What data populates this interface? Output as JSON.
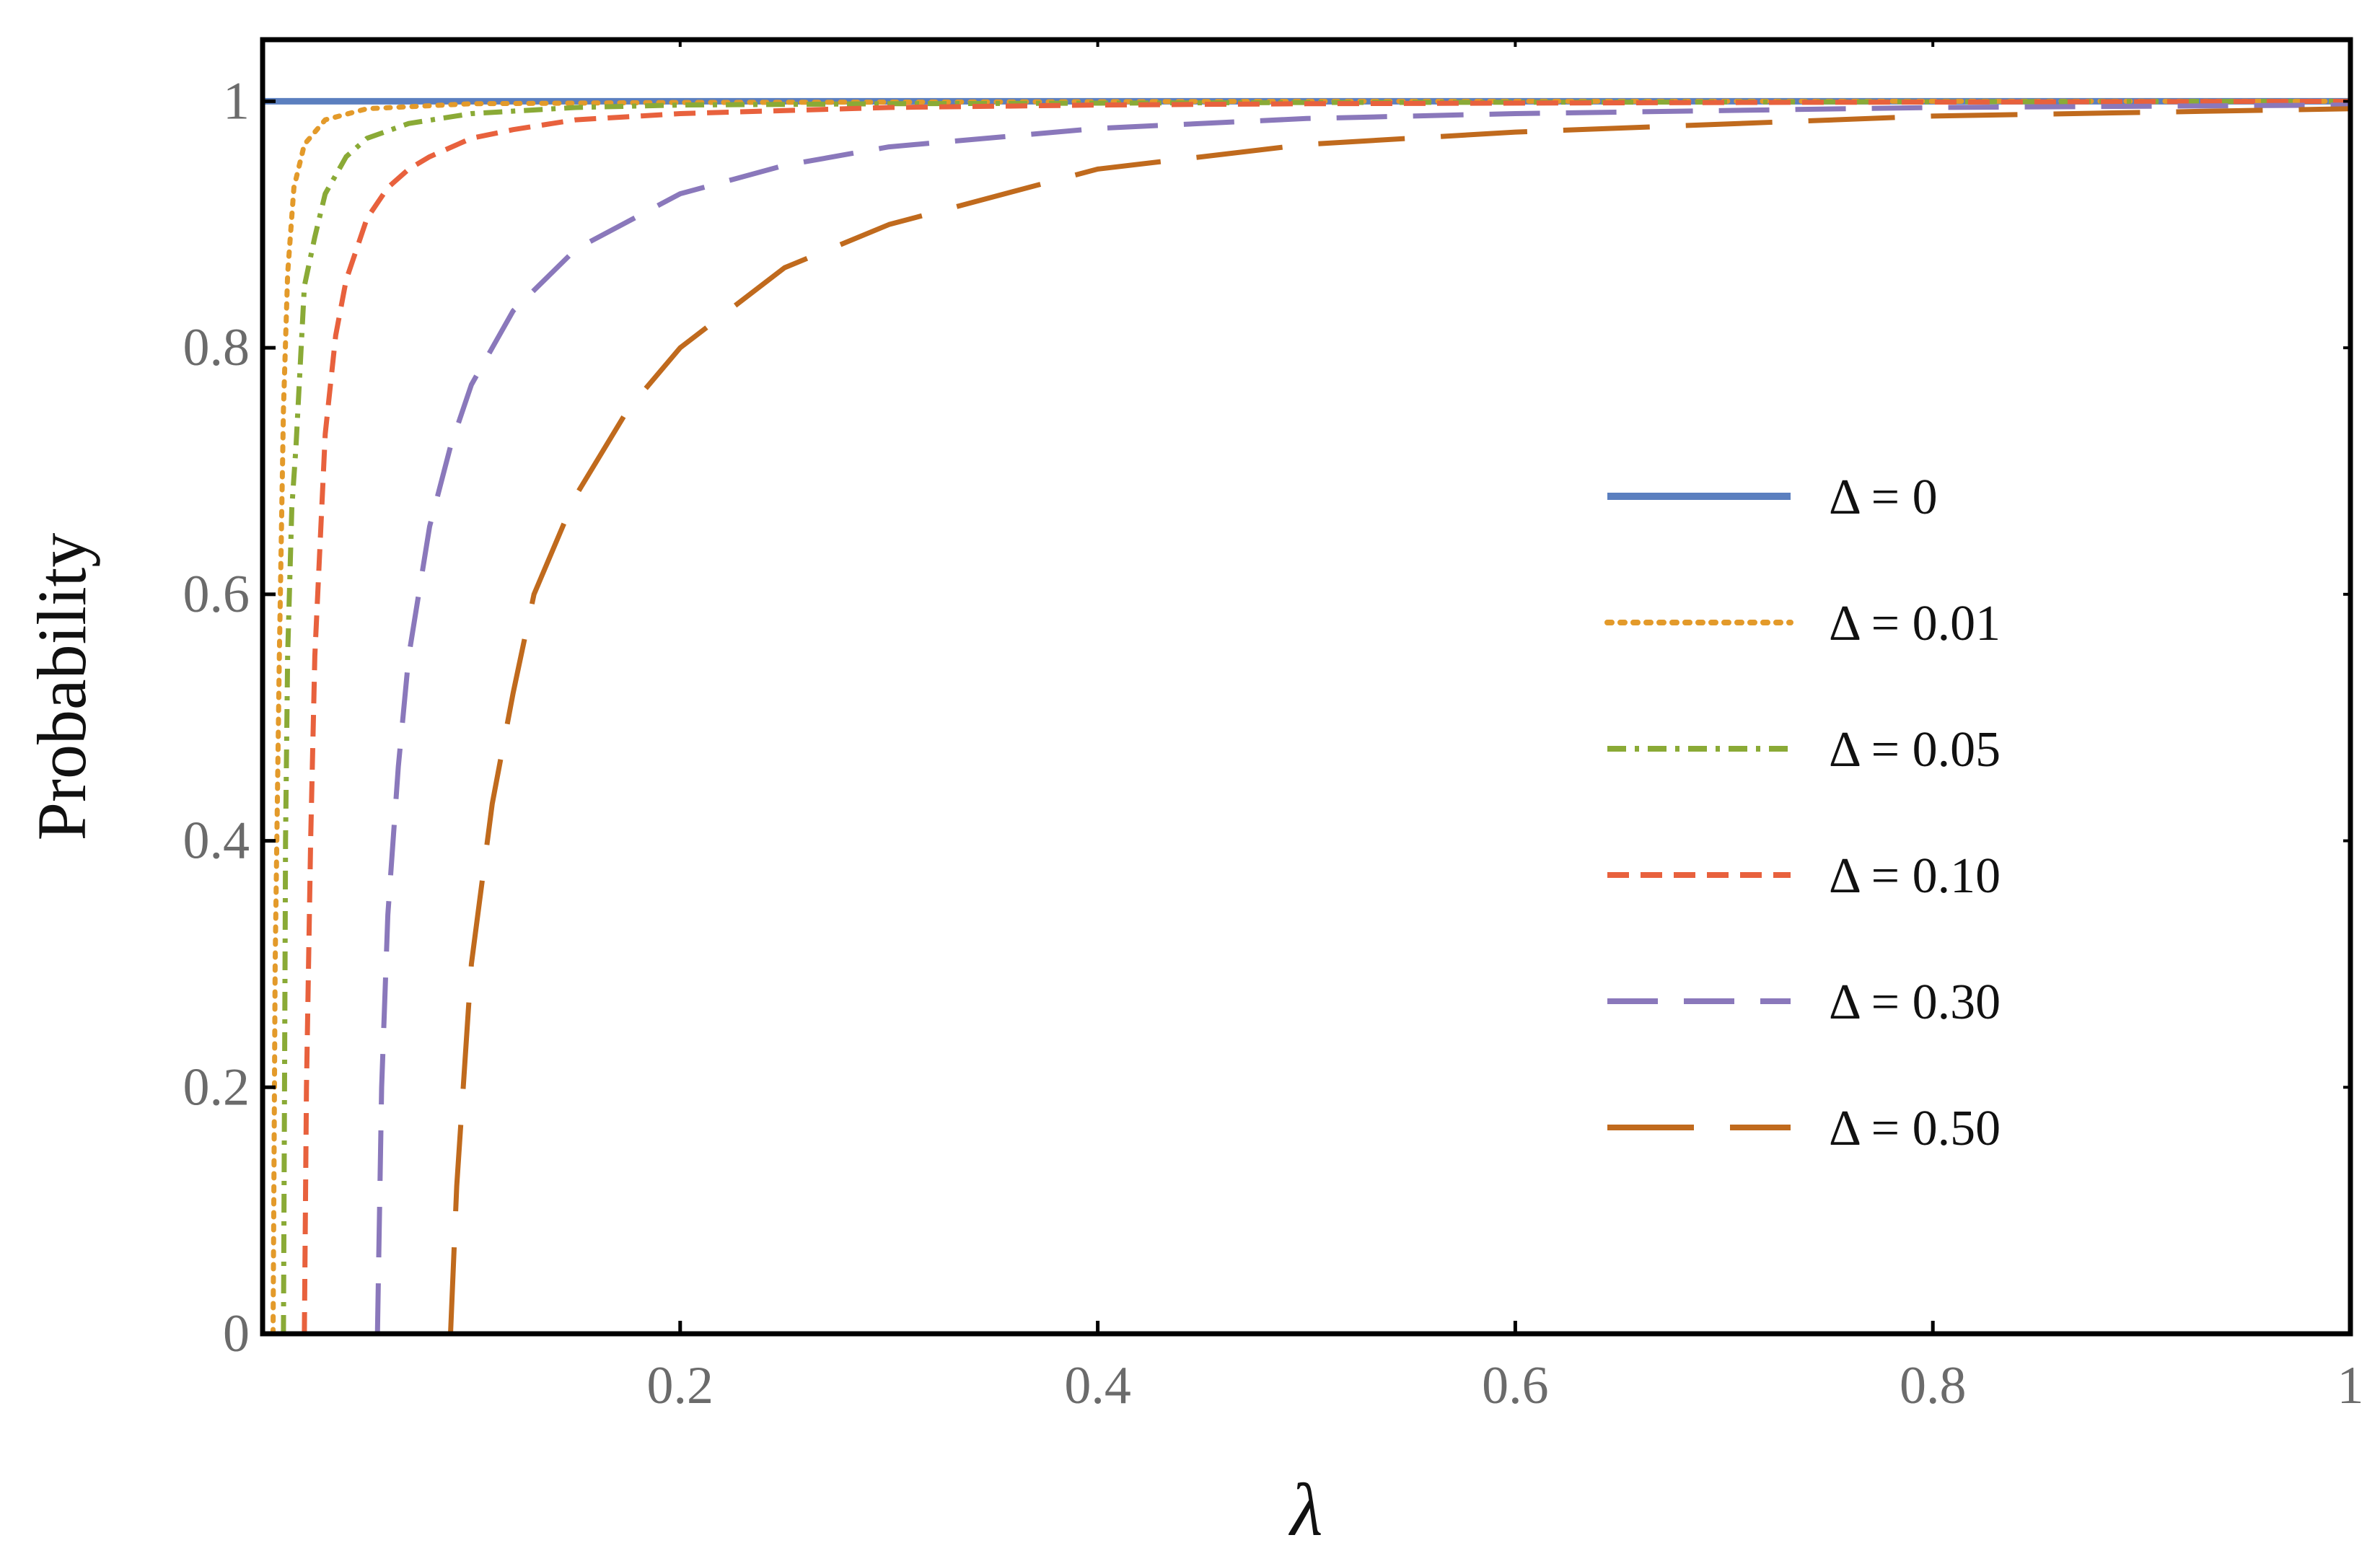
{
  "chart_data": {
    "type": "line",
    "xlabel": "λ",
    "ylabel": "Probability",
    "xlim": [
      0,
      1
    ],
    "ylim": [
      0,
      1.05
    ],
    "xticks": [
      0.2,
      0.4,
      0.6,
      0.8,
      1
    ],
    "xtick_labels": [
      "0.2",
      "0.4",
      "0.6",
      "0.8",
      "1"
    ],
    "yticks": [
      0,
      0.2,
      0.4,
      0.6,
      0.8,
      1
    ],
    "ytick_labels": [
      "0",
      "0.2",
      "0.4",
      "0.6",
      "0.8",
      "1"
    ],
    "grid": false,
    "legend_position": "right",
    "series": [
      {
        "name": "Δ = 0",
        "color": "#5b7fbf",
        "dash": "solid",
        "x": [
          0,
          1
        ],
        "y": [
          1,
          1
        ]
      },
      {
        "name": "Δ = 0.01",
        "color": "#e39a2a",
        "dash": "dotted",
        "x": [
          0.005,
          0.006,
          0.008,
          0.01,
          0.012,
          0.015,
          0.02,
          0.03,
          0.05,
          0.1,
          0.2,
          0.5,
          1
        ],
        "y": [
          0,
          0.3,
          0.55,
          0.75,
          0.86,
          0.93,
          0.965,
          0.985,
          0.994,
          0.998,
          0.999,
          1,
          1
        ]
      },
      {
        "name": "Δ = 0.05",
        "color": "#8aaa36",
        "dash": "dashdot",
        "x": [
          0.01,
          0.0105,
          0.011,
          0.012,
          0.014,
          0.016,
          0.02,
          0.025,
          0.03,
          0.04,
          0.05,
          0.07,
          0.1,
          0.15,
          0.2,
          0.3,
          0.5,
          1
        ],
        "y": [
          0,
          0.2,
          0.4,
          0.55,
          0.67,
          0.72,
          0.85,
          0.89,
          0.925,
          0.955,
          0.97,
          0.982,
          0.99,
          0.995,
          0.997,
          0.998,
          0.999,
          1
        ]
      },
      {
        "name": "Δ = 0.10",
        "color": "#e8613d",
        "dash": "dashed",
        "x": [
          0.02,
          0.021,
          0.023,
          0.025,
          0.03,
          0.035,
          0.04,
          0.05,
          0.06,
          0.07,
          0.08,
          0.1,
          0.12,
          0.15,
          0.2,
          0.3,
          0.4,
          0.5,
          0.7,
          1
        ],
        "y": [
          0,
          0.2,
          0.4,
          0.55,
          0.73,
          0.81,
          0.855,
          0.905,
          0.93,
          0.945,
          0.955,
          0.97,
          0.977,
          0.985,
          0.99,
          0.995,
          0.997,
          0.998,
          0.999,
          1
        ]
      },
      {
        "name": "Δ = 0.30",
        "color": "#8a78bb",
        "dash": "long-dashed",
        "x": [
          0.055,
          0.057,
          0.06,
          0.065,
          0.07,
          0.08,
          0.09,
          0.1,
          0.12,
          0.15,
          0.2,
          0.25,
          0.3,
          0.4,
          0.5,
          0.6,
          0.8,
          1
        ],
        "y": [
          0,
          0.2,
          0.34,
          0.46,
          0.55,
          0.655,
          0.72,
          0.77,
          0.83,
          0.88,
          0.925,
          0.948,
          0.963,
          0.978,
          0.986,
          0.99,
          0.995,
          0.997
        ]
      },
      {
        "name": "Δ = 0.50",
        "color": "#c06a1d",
        "dash": "dash-gap",
        "x": [
          0.09,
          0.093,
          0.1,
          0.11,
          0.12,
          0.13,
          0.15,
          0.175,
          0.2,
          0.25,
          0.3,
          0.4,
          0.5,
          0.6,
          0.8,
          1
        ],
        "y": [
          0,
          0.12,
          0.3,
          0.43,
          0.52,
          0.6,
          0.68,
          0.75,
          0.8,
          0.865,
          0.9,
          0.945,
          0.965,
          0.975,
          0.988,
          0.994
        ]
      }
    ]
  }
}
